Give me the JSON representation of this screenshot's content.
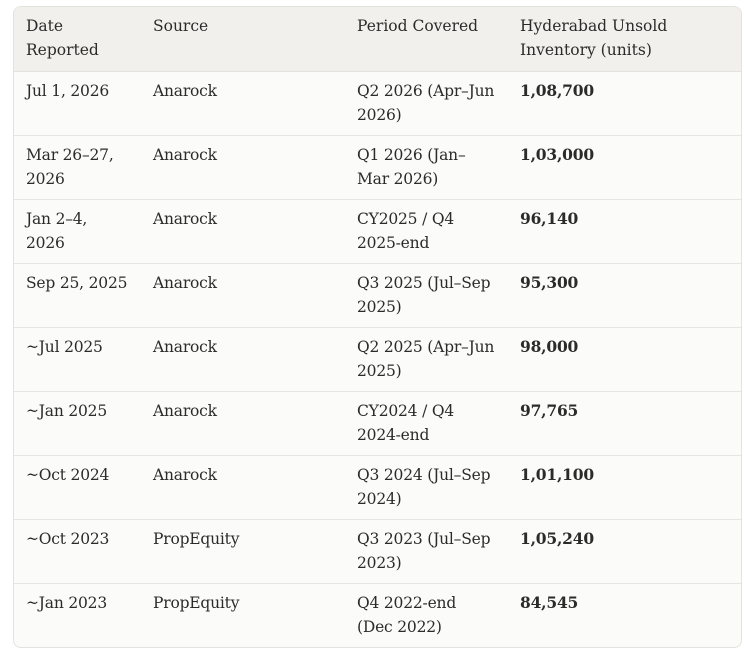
{
  "table": {
    "headers": [
      "Date Reported",
      "Source",
      "Period Covered",
      "Hyderabad Unsold Inventory (units)"
    ],
    "rows": [
      {
        "date": "Jul 1, 2026",
        "source": "Anarock",
        "period": "Q2 2026 (Apr–Jun 2026)",
        "units": "1,08,700"
      },
      {
        "date": "Mar 26–27, 2026",
        "source": "Anarock",
        "period": "Q1 2026 (Jan–Mar 2026)",
        "units": "1,03,000"
      },
      {
        "date": "Jan 2–4, 2026",
        "source": "Anarock",
        "period": "CY2025 / Q4 2025-end",
        "units": "96,140"
      },
      {
        "date": "Sep 25, 2025",
        "source": "Anarock",
        "period": "Q3 2025 (Jul–Sep 2025)",
        "units": "95,300"
      },
      {
        "date": "~Jul 2025",
        "source": "Anarock",
        "period": "Q2 2025 (Apr–Jun 2025)",
        "units": "98,000"
      },
      {
        "date": "~Jan 2025",
        "source": "Anarock",
        "period": "CY2024 / Q4 2024-end",
        "units": "97,765"
      },
      {
        "date": "~Oct 2024",
        "source": "Anarock",
        "period": "Q3 2024 (Jul–Sep 2024)",
        "units": "1,01,100"
      },
      {
        "date": "~Oct 2023",
        "source": "PropEquity",
        "period": "Q3 2023 (Jul–Sep 2023)",
        "units": "1,05,240"
      },
      {
        "date": "~Jan 2023",
        "source": "PropEquity",
        "period": "Q4 2022-end (Dec 2022)",
        "units": "84,545"
      }
    ]
  }
}
